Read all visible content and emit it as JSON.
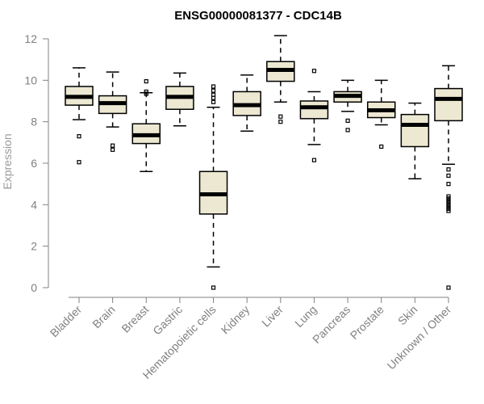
{
  "chart_data": {
    "type": "boxplot",
    "title": "ENSG00000081377 - CDC14B",
    "ylabel": "Expression",
    "xlabel": "",
    "ylim": [
      0,
      12
    ],
    "yticks": [
      0,
      2,
      4,
      6,
      8,
      10,
      12
    ],
    "grid": false,
    "box_color": "#ede8d2",
    "line_color": "#000000",
    "categories": [
      "Bladder",
      "Brain",
      "Breast",
      "Gastric",
      "Hematopoietic cells",
      "Kidney",
      "Liver",
      "Lung",
      "Pancreas",
      "Prostate",
      "Skin",
      "Unknown / Other"
    ],
    "boxes": [
      {
        "min": 8.1,
        "q1": 8.8,
        "median": 9.2,
        "q3": 9.7,
        "max": 10.6,
        "outliers": [
          7.3,
          6.05
        ]
      },
      {
        "min": 7.75,
        "q1": 8.4,
        "median": 8.9,
        "q3": 9.25,
        "max": 10.4,
        "outliers": [
          6.85,
          6.65
        ]
      },
      {
        "min": 5.6,
        "q1": 6.95,
        "median": 7.35,
        "q3": 7.9,
        "max": 9.4,
        "outliers": [
          9.95,
          9.45,
          9.35
        ]
      },
      {
        "min": 7.8,
        "q1": 8.6,
        "median": 9.2,
        "q3": 9.7,
        "max": 10.35,
        "outliers": []
      },
      {
        "min": 1.0,
        "q1": 3.55,
        "median": 4.5,
        "q3": 5.6,
        "max": 8.7,
        "outliers": [
          9.7,
          9.5,
          9.3,
          9.15,
          8.95,
          0.0
        ]
      },
      {
        "min": 7.55,
        "q1": 8.3,
        "median": 8.8,
        "q3": 9.45,
        "max": 10.25,
        "outliers": []
      },
      {
        "min": 8.95,
        "q1": 9.95,
        "median": 10.5,
        "q3": 10.9,
        "max": 12.15,
        "outliers": [
          8.25,
          8.0
        ]
      },
      {
        "min": 6.9,
        "q1": 8.15,
        "median": 8.7,
        "q3": 9.0,
        "max": 9.45,
        "outliers": [
          10.45,
          6.15
        ]
      },
      {
        "min": 8.5,
        "q1": 8.95,
        "median": 9.25,
        "q3": 9.45,
        "max": 10.0,
        "outliers": [
          8.05,
          7.6
        ]
      },
      {
        "min": 7.85,
        "q1": 8.2,
        "median": 8.55,
        "q3": 8.95,
        "max": 10.0,
        "outliers": [
          6.8
        ]
      },
      {
        "min": 5.25,
        "q1": 6.8,
        "median": 7.85,
        "q3": 8.35,
        "max": 8.9,
        "outliers": []
      },
      {
        "min": 5.95,
        "q1": 8.05,
        "median": 9.1,
        "q3": 9.6,
        "max": 10.7,
        "outliers": [
          5.7,
          5.4,
          5.0,
          4.4,
          4.3,
          4.2,
          4.1,
          4.0,
          3.9,
          3.8,
          3.7,
          0.0
        ]
      }
    ]
  }
}
